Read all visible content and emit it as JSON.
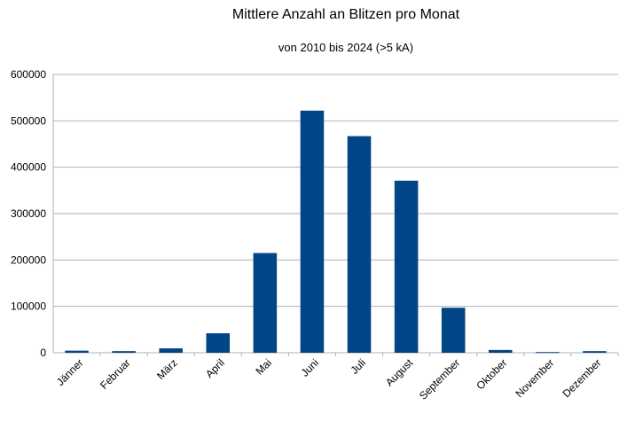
{
  "chart_data": {
    "type": "bar",
    "title": "Mittlere Anzahl an Blitzen pro Monat",
    "subtitle": "von 2010 bis 2024 (>5 kA)",
    "xlabel": "",
    "ylabel": "",
    "categories": [
      "Jänner",
      "Februar",
      "März",
      "April",
      "Mai",
      "Juni",
      "Juli",
      "August",
      "September",
      "Oktober",
      "November",
      "Dezember"
    ],
    "values": [
      4500,
      3500,
      9500,
      42000,
      215000,
      522000,
      467000,
      371000,
      97000,
      6000,
      1500,
      3500
    ],
    "ylim": [
      0,
      600000
    ],
    "yticks": [
      0,
      100000,
      200000,
      300000,
      400000,
      500000,
      600000
    ],
    "grid": true,
    "legend": "none",
    "bar_color": "#004586",
    "grid_color": "#b3b3b3"
  }
}
